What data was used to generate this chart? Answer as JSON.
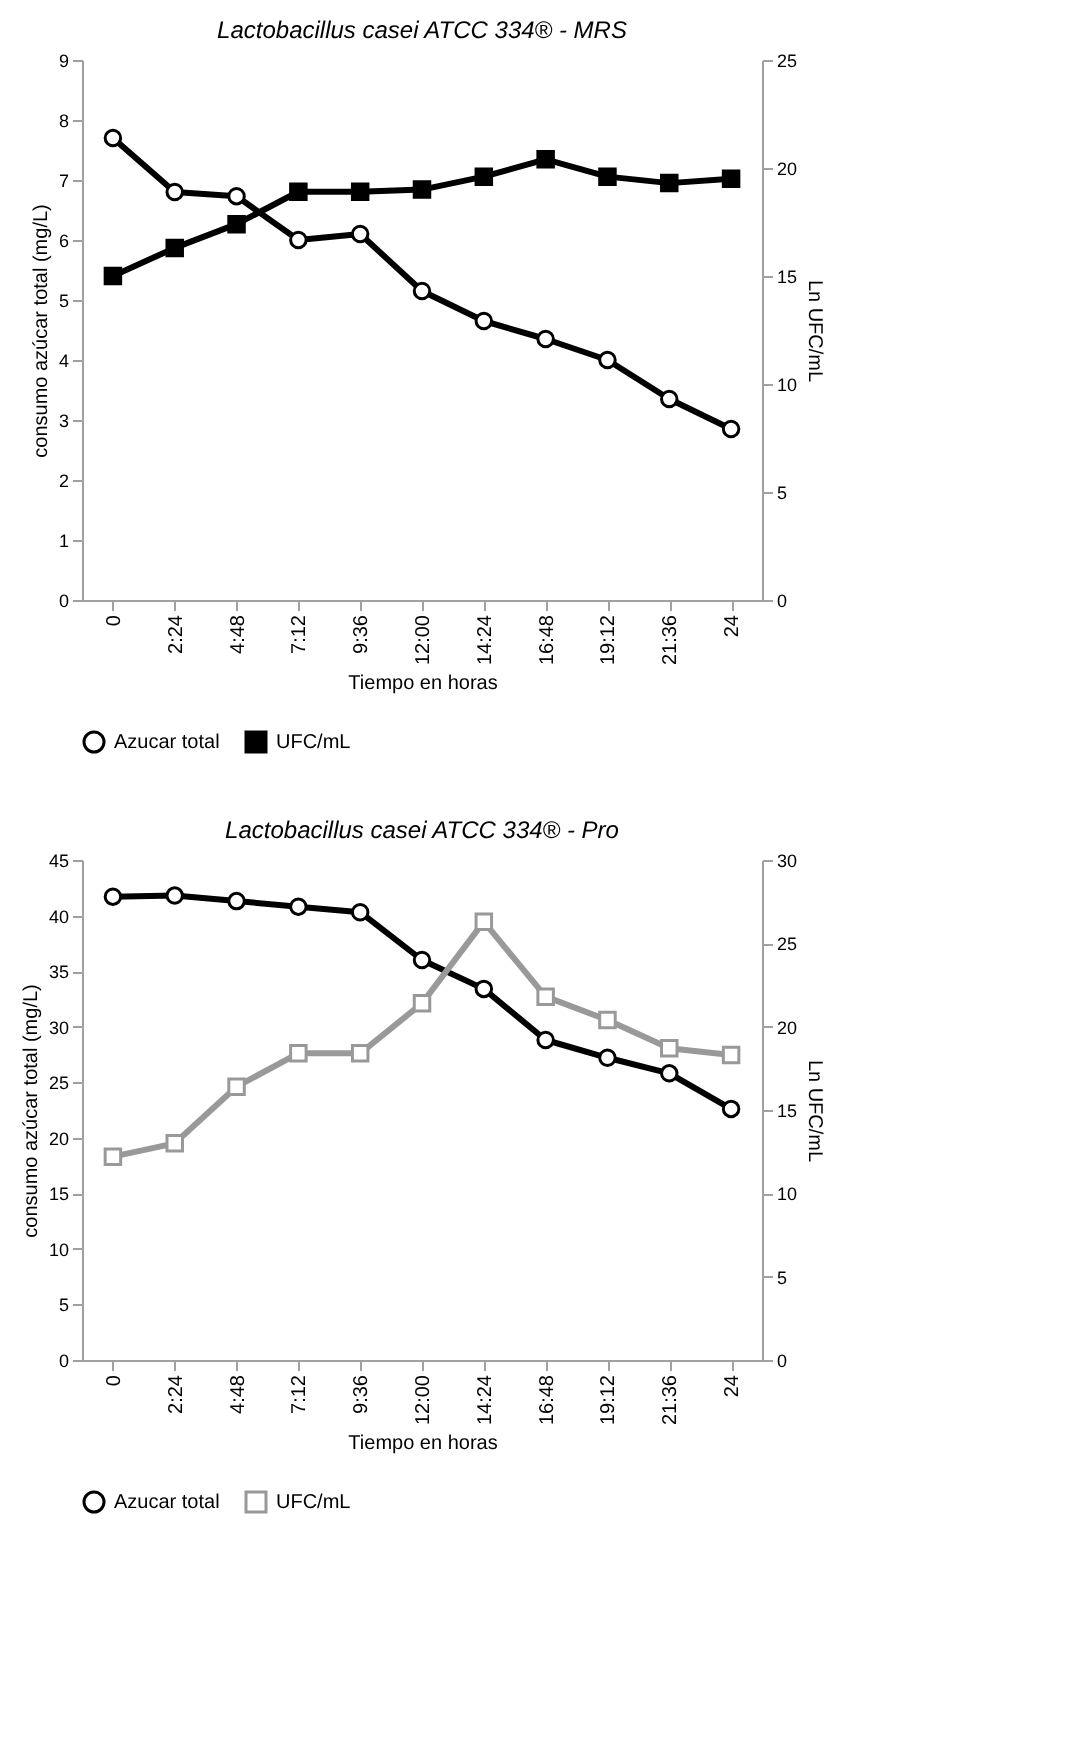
{
  "chart_data": [
    {
      "type": "line",
      "title": "Lactobacillus casei ATCC 334® - MRS",
      "xlabel": "Tiempo en horas",
      "ylabel": "consumo azúcar total (mg/L)",
      "y2label": "Ln UFC/mL",
      "legend": "bottom",
      "categories": [
        "0",
        "2:24",
        "4:48",
        "7:12",
        "9:36",
        "12:00",
        "14:24",
        "16:48",
        "19:12",
        "21:36",
        "24"
      ],
      "ylim": [
        0,
        9
      ],
      "yticks": [
        0,
        1,
        2,
        3,
        4,
        5,
        6,
        7,
        8,
        9
      ],
      "y2lim": [
        0,
        25
      ],
      "y2ticks": [
        0,
        5,
        10,
        15,
        20,
        25
      ],
      "series": [
        {
          "name": "Azucar total",
          "color": "#000000",
          "marker": "circle",
          "values": [
            7.7,
            6.8,
            6.73,
            6.0,
            6.1,
            5.15,
            4.65,
            4.35,
            4.0,
            3.35,
            2.85
          ]
        },
        {
          "name": "UFC/mL",
          "color": "#000000",
          "marker": "square",
          "axis": "y2",
          "values": [
            15.0,
            16.3,
            17.4,
            18.9,
            18.9,
            19.0,
            19.6,
            20.4,
            19.6,
            19.3,
            19.5
          ]
        }
      ]
    },
    {
      "type": "line",
      "title": "Lactobacillus casei ATCC 334® - Pro",
      "xlabel": "Tiempo en horas",
      "ylabel": "consumo azúcar total (mg/L)",
      "y2label": "Ln UFC/mL",
      "legend": "bottom",
      "categories": [
        "0",
        "2:24",
        "4:48",
        "7:12",
        "9:36",
        "12:00",
        "14:24",
        "16:48",
        "19:12",
        "21:36",
        "24"
      ],
      "ylim": [
        0,
        45
      ],
      "yticks": [
        0,
        5,
        10,
        15,
        20,
        25,
        30,
        35,
        40,
        45
      ],
      "y2lim": [
        0,
        30
      ],
      "y2ticks": [
        0,
        5,
        10,
        15,
        20,
        25,
        30
      ],
      "series": [
        {
          "name": "Azucar total",
          "color": "#000000",
          "marker": "circle",
          "values": [
            41.7,
            41.8,
            41.3,
            40.8,
            40.3,
            36.0,
            33.4,
            28.8,
            27.2,
            25.8,
            22.6
          ]
        },
        {
          "name": "UFC/mL",
          "color": "#999999",
          "marker": "square",
          "axis": "y2",
          "values": [
            12.2,
            13.0,
            16.4,
            18.4,
            18.4,
            21.4,
            26.3,
            21.8,
            20.4,
            18.7,
            18.3
          ]
        }
      ]
    }
  ]
}
